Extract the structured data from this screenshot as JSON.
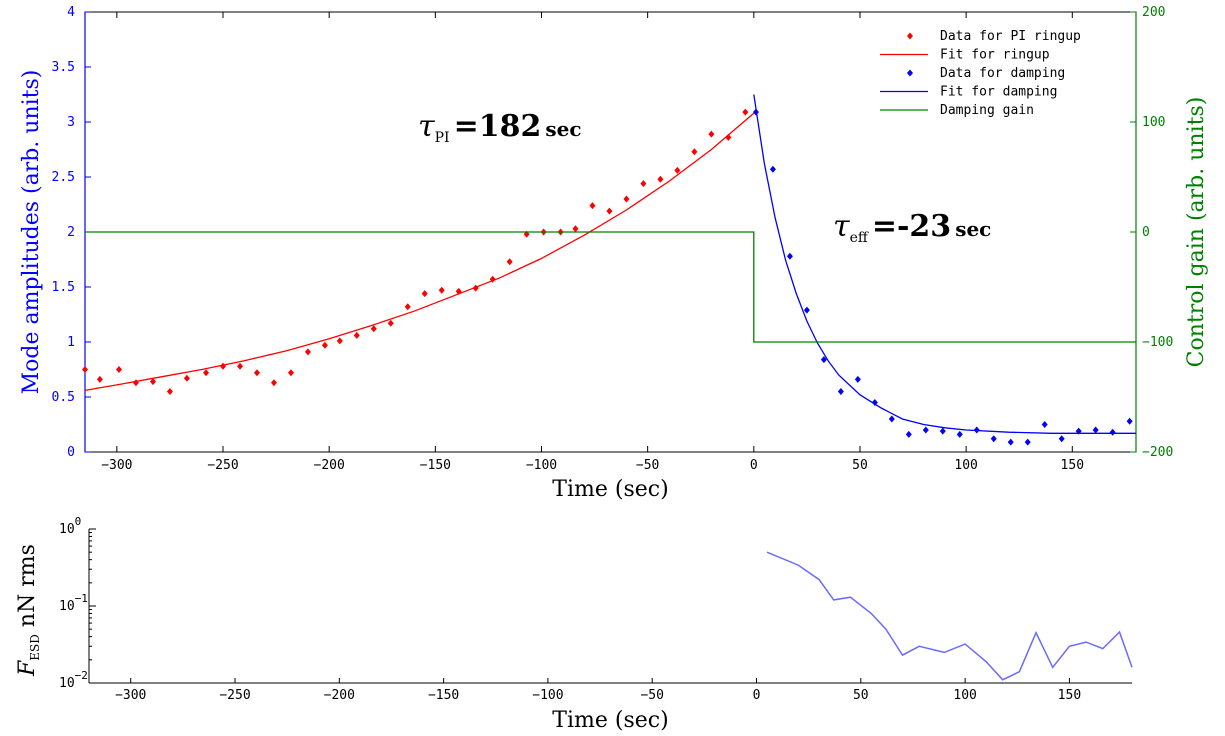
{
  "figure": {
    "annotation_pi": {
      "symbol": "τ",
      "subscript": "PI",
      "value": "=182",
      "unit": "sec"
    },
    "annotation_eff": {
      "symbol": "τ",
      "subscript": "eff",
      "value": "=-23",
      "unit": "sec"
    }
  },
  "colors": {
    "left_axis": "#0000ff",
    "right_axis": "#008000",
    "ringup": "#ff0000",
    "damping": "#0000ff",
    "gain": "#008000",
    "force": "#6a6aff"
  },
  "chart_data": [
    {
      "type": "scatter",
      "xlabel": "Time (sec)",
      "ylabel": "Mode amplitudes (arb. units)",
      "y2label": "Control gain (arb. units)",
      "xlim": [
        -315,
        180
      ],
      "ylim": [
        0,
        4
      ],
      "y2lim": [
        -200,
        200
      ],
      "xticks": [
        -300,
        -250,
        -200,
        -150,
        -100,
        -50,
        0,
        50,
        100,
        150
      ],
      "yticks": [
        "0",
        "0.5",
        "1",
        "1.5",
        "2",
        "2.5",
        "3",
        "3.5",
        "4"
      ],
      "y2ticks": [
        "-200",
        "-100",
        "0",
        "100",
        "200"
      ],
      "legend_position": "top-right",
      "series": [
        {
          "name": "Data for PI ringup",
          "kind": "points",
          "points": [
            [
              -315,
              0.75
            ],
            [
              -308,
              0.66
            ],
            [
              -299,
              0.75
            ],
            [
              -291,
              0.63
            ],
            [
              -283,
              0.64
            ],
            [
              -275,
              0.55
            ],
            [
              -267,
              0.67
            ],
            [
              -258,
              0.72
            ],
            [
              -250,
              0.78
            ],
            [
              -242,
              0.78
            ],
            [
              -234,
              0.72
            ],
            [
              -226,
              0.63
            ],
            [
              -218,
              0.72
            ],
            [
              -210,
              0.91
            ],
            [
              -202,
              0.97
            ],
            [
              -195,
              1.01
            ],
            [
              -187,
              1.06
            ],
            [
              -179,
              1.12
            ],
            [
              -171,
              1.17
            ],
            [
              -163,
              1.32
            ],
            [
              -155,
              1.44
            ],
            [
              -147,
              1.47
            ],
            [
              -139,
              1.46
            ],
            [
              -131,
              1.49
            ],
            [
              -123,
              1.57
            ],
            [
              -115,
              1.73
            ],
            [
              -107,
              1.98
            ],
            [
              -99,
              2.0
            ],
            [
              -91,
              2.0
            ],
            [
              -84,
              2.03
            ],
            [
              -76,
              2.24
            ],
            [
              -68,
              2.19
            ],
            [
              -60,
              2.3
            ],
            [
              -52,
              2.44
            ],
            [
              -44,
              2.48
            ],
            [
              -36,
              2.56
            ],
            [
              -28,
              2.73
            ],
            [
              -20,
              2.89
            ],
            [
              -12,
              2.86
            ],
            [
              -4,
              3.09
            ]
          ]
        },
        {
          "name": "Fit for ringup",
          "kind": "line",
          "points": [
            [
              -315,
              0.56
            ],
            [
              -300,
              0.61
            ],
            [
              -280,
              0.68
            ],
            [
              -260,
              0.75
            ],
            [
              -240,
              0.83
            ],
            [
              -220,
              0.92
            ],
            [
              -200,
              1.03
            ],
            [
              -180,
              1.15
            ],
            [
              -160,
              1.28
            ],
            [
              -140,
              1.43
            ],
            [
              -120,
              1.58
            ],
            [
              -100,
              1.76
            ],
            [
              -80,
              1.97
            ],
            [
              -60,
              2.2
            ],
            [
              -40,
              2.46
            ],
            [
              -20,
              2.75
            ],
            [
              0,
              3.08
            ]
          ]
        },
        {
          "name": "Data for damping",
          "kind": "points",
          "points": [
            [
              1,
              3.09
            ],
            [
              9,
              2.57
            ],
            [
              17,
              1.78
            ],
            [
              25,
              1.29
            ],
            [
              33,
              0.84
            ],
            [
              41,
              0.55
            ],
            [
              49,
              0.66
            ],
            [
              57,
              0.45
            ],
            [
              65,
              0.3
            ],
            [
              73,
              0.16
            ],
            [
              81,
              0.2
            ],
            [
              89,
              0.19
            ],
            [
              97,
              0.16
            ],
            [
              105,
              0.2
            ],
            [
              113,
              0.12
            ],
            [
              121,
              0.09
            ],
            [
              129,
              0.09
            ],
            [
              137,
              0.25
            ],
            [
              145,
              0.12
            ],
            [
              153,
              0.19
            ],
            [
              161,
              0.2
            ],
            [
              169,
              0.18
            ],
            [
              177,
              0.28
            ]
          ]
        },
        {
          "name": "Fit for damping",
          "kind": "line",
          "points": [
            [
              0,
              3.25
            ],
            [
              5,
              2.62
            ],
            [
              10,
              2.13
            ],
            [
              15,
              1.74
            ],
            [
              20,
              1.44
            ],
            [
              25,
              1.19
            ],
            [
              30,
              0.99
            ],
            [
              35,
              0.83
            ],
            [
              40,
              0.7
            ],
            [
              50,
              0.52
            ],
            [
              60,
              0.4
            ],
            [
              70,
              0.3
            ],
            [
              80,
              0.25
            ],
            [
              90,
              0.22
            ],
            [
              100,
              0.2
            ],
            [
              120,
              0.18
            ],
            [
              140,
              0.17
            ],
            [
              160,
              0.17
            ],
            [
              180,
              0.17
            ]
          ]
        },
        {
          "name": "Damping gain",
          "kind": "step",
          "axis": "right",
          "points": [
            [
              -315,
              0
            ],
            [
              0,
              0
            ],
            [
              0,
              -100
            ],
            [
              180,
              -100
            ]
          ]
        }
      ]
    },
    {
      "type": "line",
      "xlabel": "Time (sec)",
      "ylabel": "nN rms",
      "ylabel_symbol": "F",
      "ylabel_subscript": "ESD",
      "yscale": "log",
      "xlim": [
        -320,
        180
      ],
      "ylim": [
        0.01,
        1
      ],
      "xticks": [
        -300,
        -250,
        -200,
        -150,
        -100,
        -50,
        0,
        50,
        100,
        150
      ],
      "yticks": [
        {
          "value": 1,
          "base": "10",
          "exp": "0"
        },
        {
          "value": 0.1,
          "base": "10",
          "exp": "−1"
        },
        {
          "value": 0.01,
          "base": "10",
          "exp": "−2"
        }
      ],
      "series": [
        {
          "points": [
            [
              5,
              0.5
            ],
            [
              20,
              0.34
            ],
            [
              30,
              0.22
            ],
            [
              37,
              0.12
            ],
            [
              45,
              0.13
            ],
            [
              55,
              0.08
            ],
            [
              62,
              0.05
            ],
            [
              70,
              0.023
            ],
            [
              78,
              0.03
            ],
            [
              90,
              0.025
            ],
            [
              100,
              0.032
            ],
            [
              110,
              0.019
            ],
            [
              118,
              0.011
            ],
            [
              126,
              0.014
            ],
            [
              134,
              0.045
            ],
            [
              142,
              0.016
            ],
            [
              150,
              0.03
            ],
            [
              158,
              0.034
            ],
            [
              166,
              0.028
            ],
            [
              174,
              0.046
            ],
            [
              180,
              0.016
            ]
          ]
        }
      ]
    }
  ]
}
